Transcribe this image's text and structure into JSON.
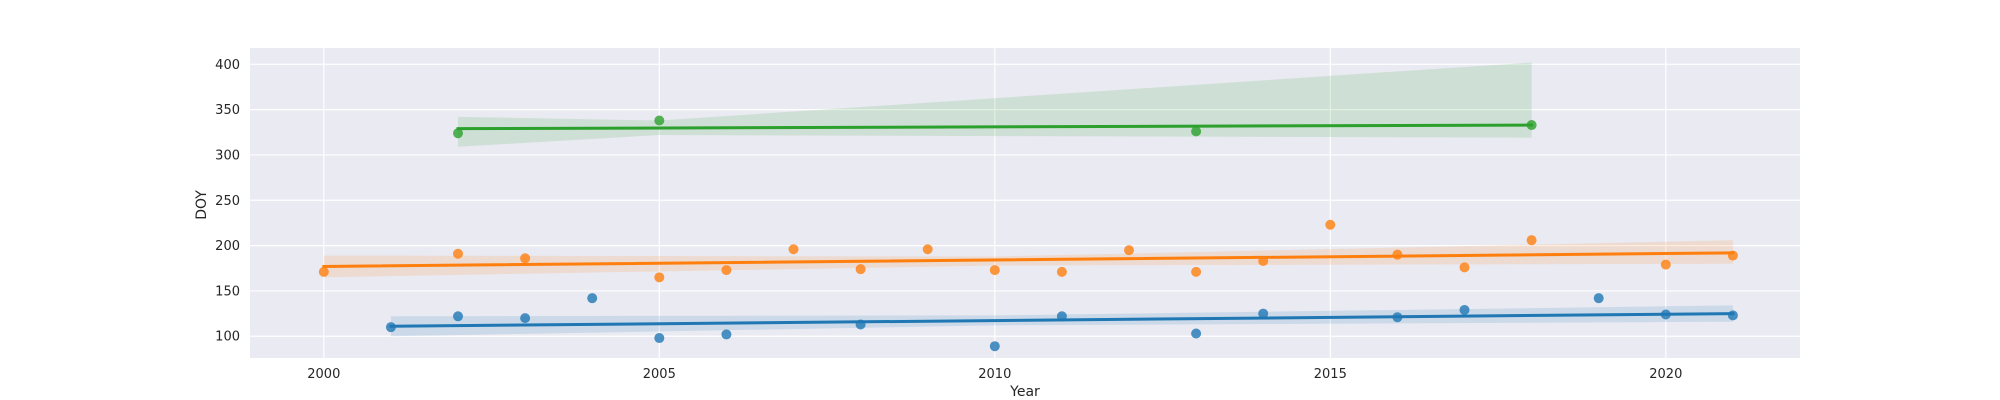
{
  "chart_data": {
    "type": "scatter",
    "title": "",
    "xlabel": "Year",
    "ylabel": "DOY",
    "xlim": [
      1998.9,
      2022.0
    ],
    "ylim": [
      76,
      418
    ],
    "xticks": [
      2000,
      2005,
      2010,
      2015,
      2020
    ],
    "yticks": [
      100,
      150,
      200,
      250,
      300,
      350,
      400
    ],
    "grid": true,
    "background": "#eaeaf2",
    "series": [
      {
        "color": "#1f77b4",
        "points": [
          [
            2001,
            110
          ],
          [
            2002,
            122
          ],
          [
            2003,
            120
          ],
          [
            2004,
            142
          ],
          [
            2005,
            98
          ],
          [
            2006,
            102
          ],
          [
            2008,
            113
          ],
          [
            2010,
            89
          ],
          [
            2011,
            122
          ],
          [
            2013,
            103
          ],
          [
            2014,
            125
          ],
          [
            2016,
            121
          ],
          [
            2017,
            129
          ],
          [
            2019,
            142
          ],
          [
            2020,
            124
          ],
          [
            2021,
            123
          ]
        ],
        "fit": {
          "x": [
            2001,
            2021
          ],
          "y": [
            111,
            125
          ]
        },
        "band": {
          "x": [
            2001,
            2010,
            2021
          ],
          "upper": [
            122,
            123,
            134
          ],
          "lower": [
            100,
            112,
            116
          ]
        }
      },
      {
        "color": "#ff7f0e",
        "points": [
          [
            2000,
            171
          ],
          [
            2002,
            191
          ],
          [
            2003,
            186
          ],
          [
            2005,
            165
          ],
          [
            2006,
            173
          ],
          [
            2007,
            196
          ],
          [
            2008,
            174
          ],
          [
            2009,
            196
          ],
          [
            2010,
            173
          ],
          [
            2011,
            171
          ],
          [
            2012,
            195
          ],
          [
            2013,
            171
          ],
          [
            2014,
            183
          ],
          [
            2015,
            223
          ],
          [
            2016,
            190
          ],
          [
            2017,
            176
          ],
          [
            2018,
            206
          ],
          [
            2020,
            179
          ],
          [
            2021,
            189
          ]
        ],
        "fit": {
          "x": [
            2000,
            2021
          ],
          "y": [
            177,
            192
          ]
        },
        "band": {
          "x": [
            2000,
            2010,
            2021
          ],
          "upper": [
            189,
            188,
            206
          ],
          "lower": [
            165,
            178,
            180
          ]
        }
      },
      {
        "color": "#2ca02c",
        "points": [
          [
            2002,
            324
          ],
          [
            2005,
            338
          ],
          [
            2013,
            326
          ],
          [
            2018,
            333
          ]
        ],
        "fit": {
          "x": [
            2002,
            2018
          ],
          "y": [
            329,
            333
          ]
        },
        "band": {
          "x": [
            2002,
            2005,
            2018
          ],
          "upper": [
            342,
            338,
            402
          ],
          "lower": [
            309,
            322,
            319
          ]
        }
      }
    ]
  }
}
